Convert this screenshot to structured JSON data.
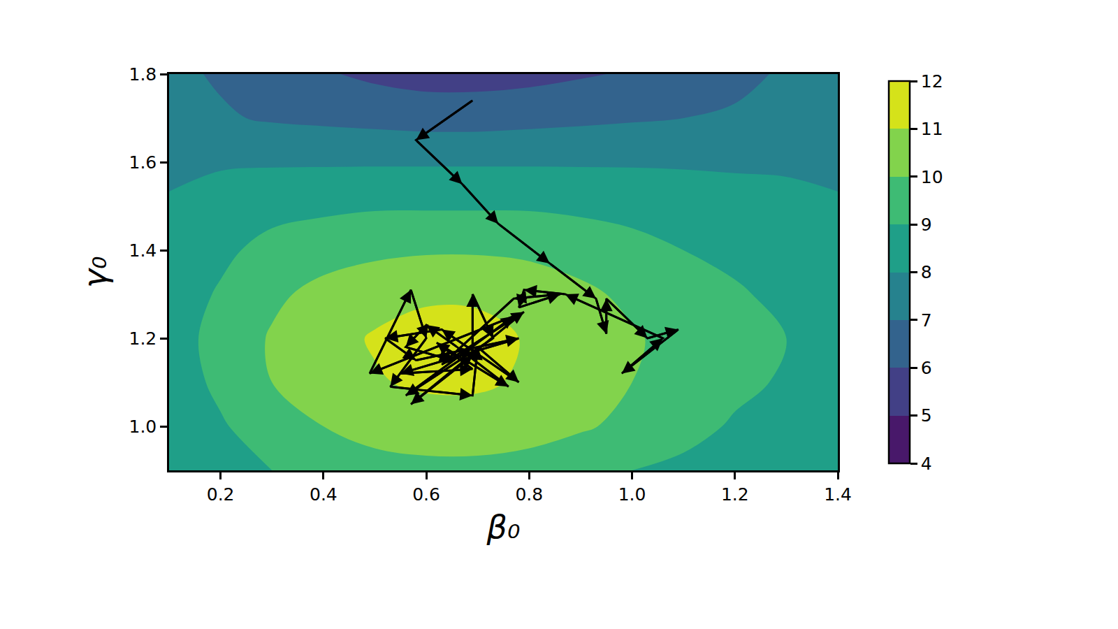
{
  "chart_data": {
    "type": "contour",
    "x_label": "β₀",
    "y_label": "γ₀",
    "x": [
      0.1,
      0.2,
      0.3,
      0.4,
      0.5,
      0.6,
      0.7,
      0.8,
      0.9,
      1.0,
      1.1,
      1.2,
      1.3,
      1.4
    ],
    "y": [
      0.9,
      1.0,
      1.1,
      1.2,
      1.3,
      1.4,
      1.5,
      1.6,
      1.7,
      1.8
    ],
    "cells": [
      [
        8.2,
        8.6,
        9.0,
        9.4,
        9.7,
        9.8,
        9.8,
        9.7,
        9.4,
        9.0,
        8.8,
        8.5,
        8.3,
        8.2
      ],
      [
        8.4,
        8.9,
        9.5,
        10.0,
        10.3,
        10.4,
        10.4,
        10.3,
        10.1,
        9.8,
        9.3,
        8.9,
        8.6,
        8.4
      ],
      [
        8.5,
        9.2,
        10.0,
        10.5,
        10.9,
        11.2,
        11.2,
        10.8,
        10.4,
        10.0,
        9.6,
        9.2,
        8.9,
        8.6
      ],
      [
        8.6,
        9.3,
        10.1,
        10.6,
        11.1,
        11.5,
        11.4,
        10.9,
        10.5,
        10.1,
        9.7,
        9.3,
        9.0,
        8.7
      ],
      [
        8.5,
        9.1,
        9.8,
        10.3,
        10.6,
        10.8,
        10.8,
        10.6,
        10.2,
        9.8,
        9.4,
        9.1,
        8.8,
        8.5
      ],
      [
        8.3,
        8.8,
        9.3,
        9.6,
        9.8,
        9.9,
        9.9,
        9.8,
        9.6,
        9.3,
        9.0,
        8.8,
        8.5,
        8.3
      ],
      [
        8.1,
        8.4,
        8.7,
        8.8,
        8.9,
        8.9,
        8.9,
        8.9,
        8.8,
        8.7,
        8.5,
        8.3,
        8.2,
        8.1
      ],
      [
        7.8,
        7.9,
        7.9,
        7.9,
        7.9,
        7.9,
        7.9,
        7.9,
        7.9,
        7.9,
        7.9,
        7.9,
        7.9,
        7.8
      ],
      [
        7.3,
        7.1,
        6.9,
        6.8,
        6.7,
        6.6,
        6.6,
        6.7,
        6.8,
        6.9,
        7.0,
        7.1,
        7.3,
        7.5
      ],
      [
        7.2,
        6.9,
        6.4,
        6.1,
        5.8,
        5.6,
        5.6,
        5.7,
        5.9,
        6.1,
        6.4,
        6.8,
        7.1,
        7.4
      ]
    ],
    "levels": [
      4,
      5,
      6,
      7,
      8,
      9,
      10,
      11,
      12
    ],
    "colorbar_range": [
      4,
      12
    ],
    "colorbar_ticks": [
      4,
      5,
      6,
      7,
      8,
      9,
      10,
      11,
      12
    ],
    "path": {
      "color": "#000000",
      "x": [
        0.69,
        0.58,
        0.67,
        0.74,
        0.84,
        0.93,
        0.95,
        0.95,
        1.03,
        1.09,
        0.98,
        1.06,
        0.87,
        0.79,
        0.78,
        0.86,
        0.77,
        0.63,
        0.79,
        0.57,
        0.69,
        0.69,
        0.73,
        0.56,
        0.77,
        0.49,
        0.57,
        0.6,
        0.53,
        0.69,
        0.7,
        0.78,
        0.63,
        0.52,
        0.58,
        0.78,
        0.55,
        0.69,
        0.62,
        0.76,
        0.66,
        0.6,
        0.56,
        0.65
      ],
      "y": [
        1.74,
        1.65,
        1.55,
        1.46,
        1.37,
        1.29,
        1.21,
        1.29,
        1.2,
        1.22,
        1.12,
        1.2,
        1.3,
        1.31,
        1.27,
        1.3,
        1.29,
        1.14,
        1.26,
        1.05,
        1.16,
        1.3,
        1.2,
        1.07,
        1.25,
        1.12,
        1.31,
        1.2,
        1.09,
        1.07,
        1.18,
        1.1,
        1.22,
        1.2,
        1.15,
        1.2,
        1.12,
        1.13,
        1.19,
        1.09,
        1.18,
        1.23,
        1.18,
        1.15
      ]
    },
    "xlim": [
      0.1,
      1.4
    ],
    "ylim": [
      0.9,
      1.8
    ],
    "xticks": [
      0.2,
      0.4,
      0.6,
      0.8,
      {
        "value": 1.0,
        "label": "1.0"
      },
      1.2,
      1.4
    ],
    "yticks": [
      {
        "value": 1.0,
        "label": "1.0"
      },
      1.2,
      1.4,
      1.6,
      1.8
    ],
    "grid": false
  }
}
